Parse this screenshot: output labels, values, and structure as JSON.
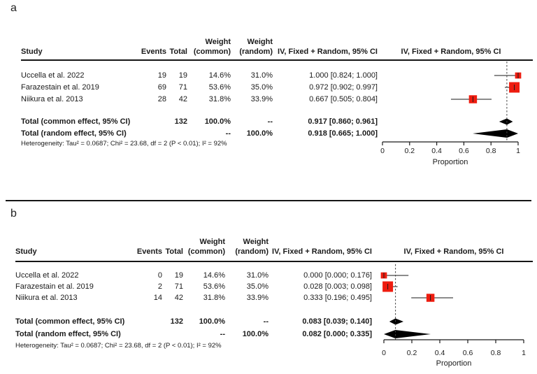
{
  "figure": {
    "panel_a_label": "a",
    "panel_b_label": "b"
  },
  "columns": {
    "study": "Study",
    "events": "Events",
    "total": "Total",
    "weight": "Weight",
    "common": "(common)",
    "random": "(random)",
    "ci": "IV, Fixed + Random, 95% CI",
    "plot": "IV, Fixed + Random, 95% CI"
  },
  "colors": {
    "square_red": "#ee1c0f",
    "diamond_black": "#000000",
    "line_black": "#1a1a1a"
  },
  "chart_data": [
    {
      "type": "forest",
      "panel_label": "a",
      "studies": [
        {
          "study": "Uccella et al. 2022",
          "events": "19",
          "total": "19",
          "weight_common": "14.6%",
          "weight_random": "31.0%",
          "ci_label": "1.000 [0.824; 1.000]",
          "estimate": 1.0,
          "ci_low": 0.824,
          "ci_high": 1.0
        },
        {
          "study": "Farazestain et al. 2019",
          "events": "69",
          "total": "71",
          "weight_common": "53.6%",
          "weight_random": "35.0%",
          "ci_label": "0.972 [0.902; 0.997]",
          "estimate": 0.972,
          "ci_low": 0.902,
          "ci_high": 0.997
        },
        {
          "study": "Niikura et al. 2013",
          "events": "28",
          "total": "42",
          "weight_common": "31.8%",
          "weight_random": "33.9%",
          "ci_label": "0.667 [0.505; 0.804]",
          "estimate": 0.667,
          "ci_low": 0.505,
          "ci_high": 0.804
        }
      ],
      "totals": [
        {
          "label": "Total (common effect, 95% CI)",
          "events": "",
          "total": "132",
          "weight_common": "100.0%",
          "weight_random": "--",
          "ci_label": "0.917 [0.860; 0.961]",
          "estimate": 0.917,
          "ci_low": 0.86,
          "ci_high": 0.961
        },
        {
          "label": "Total (random effect, 95% CI)",
          "events": "",
          "total": "",
          "weight_common": "--",
          "weight_random": "100.0%",
          "ci_label": "0.918 [0.665; 1.000]",
          "estimate": 0.918,
          "ci_low": 0.665,
          "ci_high": 1.0
        }
      ],
      "heterogeneity": "Heterogeneity: Tau² = 0.0687; Chi² = 23.68, df = 2 (P < 0.01); I² = 92%",
      "dashed_line_at": 0.917,
      "axis": {
        "min": 0,
        "max": 1,
        "ticks": [
          0,
          0.2,
          0.4,
          0.6,
          0.8,
          1
        ],
        "tick_labels": [
          "0",
          "0.2",
          "0.4",
          "0.6",
          "0.8",
          "1"
        ],
        "label": "Proportion"
      }
    },
    {
      "type": "forest",
      "panel_label": "b",
      "studies": [
        {
          "study": "Uccella et al. 2022",
          "events": "0",
          "total": "19",
          "weight_common": "14.6%",
          "weight_random": "31.0%",
          "ci_label": "0.000 [0.000; 0.176]",
          "estimate": 0.0,
          "ci_low": 0.0,
          "ci_high": 0.176
        },
        {
          "study": "Farazestain et al. 2019",
          "events": "2",
          "total": "71",
          "weight_common": "53.6%",
          "weight_random": "35.0%",
          "ci_label": "0.028 [0.003; 0.098]",
          "estimate": 0.028,
          "ci_low": 0.003,
          "ci_high": 0.098
        },
        {
          "study": "Niikura et al. 2013",
          "events": "14",
          "total": "42",
          "weight_common": "31.8%",
          "weight_random": "33.9%",
          "ci_label": "0.333 [0.196; 0.495]",
          "estimate": 0.333,
          "ci_low": 0.196,
          "ci_high": 0.495
        }
      ],
      "totals": [
        {
          "label": "Total (common effect, 95% CI)",
          "events": "",
          "total": "132",
          "weight_common": "100.0%",
          "weight_random": "--",
          "ci_label": "0.083 [0.039; 0.140]",
          "estimate": 0.083,
          "ci_low": 0.039,
          "ci_high": 0.14
        },
        {
          "label": "Total (random effect, 95% CI)",
          "events": "",
          "total": "",
          "weight_common": "--",
          "weight_random": "100.0%",
          "ci_label": "0.082 [0.000; 0.335]",
          "estimate": 0.082,
          "ci_low": 0.0,
          "ci_high": 0.335
        }
      ],
      "heterogeneity": "Heterogeneity: Tau² = 0.0687; Chi² = 23.68, df = 2 (P < 0.01); I² = 92%",
      "dashed_line_at": 0.083,
      "axis": {
        "min": 0,
        "max": 1,
        "ticks": [
          0,
          0.2,
          0.4,
          0.6,
          0.8,
          1
        ],
        "tick_labels": [
          "0",
          "0.2",
          "0.4",
          "0.6",
          "0.8",
          "1"
        ],
        "label": "Proportion"
      }
    }
  ]
}
